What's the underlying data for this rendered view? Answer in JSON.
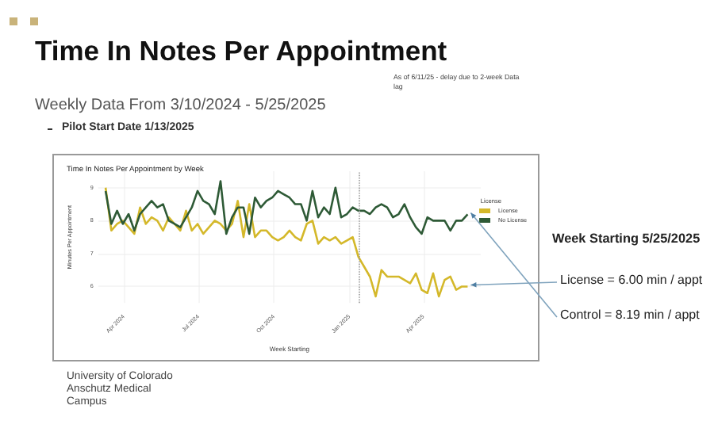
{
  "chart_data": [
    {
      "type": "other",
      "title": "Time In Notes Per Appointment",
      "subtitle": "Weekly Data From 3/10/2024 - 5/25/2025",
      "annotations": [
        "Pilot Start Date 1/13/2025",
        "As of 6/11/25 - delay due to 2-week Data lag",
        "University of Colorado Anschutz Medical Campus"
      ]
    },
    {
      "type": "line",
      "title": "Time In Notes Per Appointment by Week",
      "xlabel": "Week Starting",
      "ylabel": "Minutes Per Appointment",
      "legend_title": "License",
      "x": [
        "2024-03-10",
        "2024-03-17",
        "2024-03-24",
        "2024-03-31",
        "2024-04-07",
        "2024-04-14",
        "2024-04-21",
        "2024-04-28",
        "2024-05-05",
        "2024-05-12",
        "2024-05-19",
        "2024-05-26",
        "2024-06-02",
        "2024-06-09",
        "2024-06-16",
        "2024-06-23",
        "2024-06-30",
        "2024-07-07",
        "2024-07-14",
        "2024-07-21",
        "2024-07-28",
        "2024-08-04",
        "2024-08-11",
        "2024-08-18",
        "2024-08-25",
        "2024-09-01",
        "2024-09-08",
        "2024-09-15",
        "2024-09-22",
        "2024-09-29",
        "2024-10-06",
        "2024-10-13",
        "2024-10-20",
        "2024-10-27",
        "2024-11-03",
        "2024-11-10",
        "2024-11-17",
        "2024-11-24",
        "2024-12-01",
        "2024-12-08",
        "2024-12-15",
        "2024-12-22",
        "2024-12-29",
        "2025-01-05",
        "2025-01-12",
        "2025-01-19",
        "2025-01-26",
        "2025-02-02",
        "2025-02-09",
        "2025-02-16",
        "2025-02-23",
        "2025-03-02",
        "2025-03-09",
        "2025-03-16",
        "2025-03-23",
        "2025-03-30",
        "2025-04-06",
        "2025-04-13",
        "2025-04-20",
        "2025-04-27",
        "2025-05-04",
        "2025-05-11",
        "2025-05-18",
        "2025-05-25"
      ],
      "series": [
        {
          "name": "License",
          "color": "#d4b82a",
          "values": [
            9.0,
            7.7,
            7.9,
            8.0,
            7.8,
            7.6,
            8.4,
            7.9,
            8.1,
            8.0,
            7.7,
            8.1,
            7.9,
            7.7,
            8.3,
            7.7,
            7.9,
            7.6,
            7.8,
            8.0,
            7.9,
            7.7,
            7.9,
            8.6,
            7.5,
            8.5,
            7.5,
            7.7,
            7.7,
            7.5,
            7.4,
            7.5,
            7.7,
            7.5,
            7.4,
            7.9,
            8.0,
            7.3,
            7.5,
            7.4,
            7.5,
            7.3,
            7.4,
            7.5,
            6.9,
            6.6,
            6.3,
            5.7,
            6.5,
            6.3,
            6.3,
            6.3,
            6.2,
            6.1,
            6.4,
            5.9,
            5.8,
            6.4,
            5.7,
            6.2,
            6.3,
            5.9,
            6.0,
            6.0
          ]
        },
        {
          "name": "No License",
          "color": "#2e5a36",
          "values": [
            8.9,
            7.9,
            8.3,
            7.9,
            8.2,
            7.7,
            8.2,
            8.4,
            8.6,
            8.4,
            8.5,
            8.0,
            7.9,
            7.8,
            8.1,
            8.4,
            8.9,
            8.6,
            8.5,
            8.2,
            9.2,
            7.6,
            8.1,
            8.4,
            8.4,
            7.6,
            8.7,
            8.4,
            8.6,
            8.7,
            8.9,
            8.8,
            8.7,
            8.5,
            8.5,
            8.0,
            8.9,
            8.1,
            8.4,
            8.2,
            9.0,
            8.1,
            8.2,
            8.4,
            8.3,
            8.3,
            8.2,
            8.4,
            8.5,
            8.4,
            8.1,
            8.2,
            8.5,
            8.1,
            7.8,
            7.6,
            8.1,
            8.0,
            8.0,
            8.0,
            7.7,
            8.0,
            8.0,
            8.19
          ]
        }
      ],
      "xlim": [
        "2024-03-01",
        "2025-06-10"
      ],
      "xticks": [
        {
          "value": "2024-04-01",
          "label": "Apr 2024"
        },
        {
          "value": "2024-07-01",
          "label": "Jul 2024"
        },
        {
          "value": "2024-10-01",
          "label": "Oct 2024"
        },
        {
          "value": "2025-01-01",
          "label": "Jan 2025"
        },
        {
          "value": "2025-04-01",
          "label": "Apr 2025"
        }
      ],
      "ylim": [
        5.5,
        9.5
      ],
      "yticks": [
        6,
        7,
        8,
        9
      ],
      "grid": true,
      "legend": "right",
      "ref_lines": [
        {
          "axis": "x",
          "value": "2025-01-13",
          "color": "#999999",
          "line_style": "dotted"
        }
      ],
      "annotations": [
        "Week Starting 5/25/2025",
        {
          "text": "License = 6.00 min / appt",
          "x": "2025-05-25",
          "y": 6.0
        },
        {
          "text": "Control = 8.19 min / appt",
          "x": "2025-05-25",
          "y": 8.19
        }
      ]
    }
  ]
}
